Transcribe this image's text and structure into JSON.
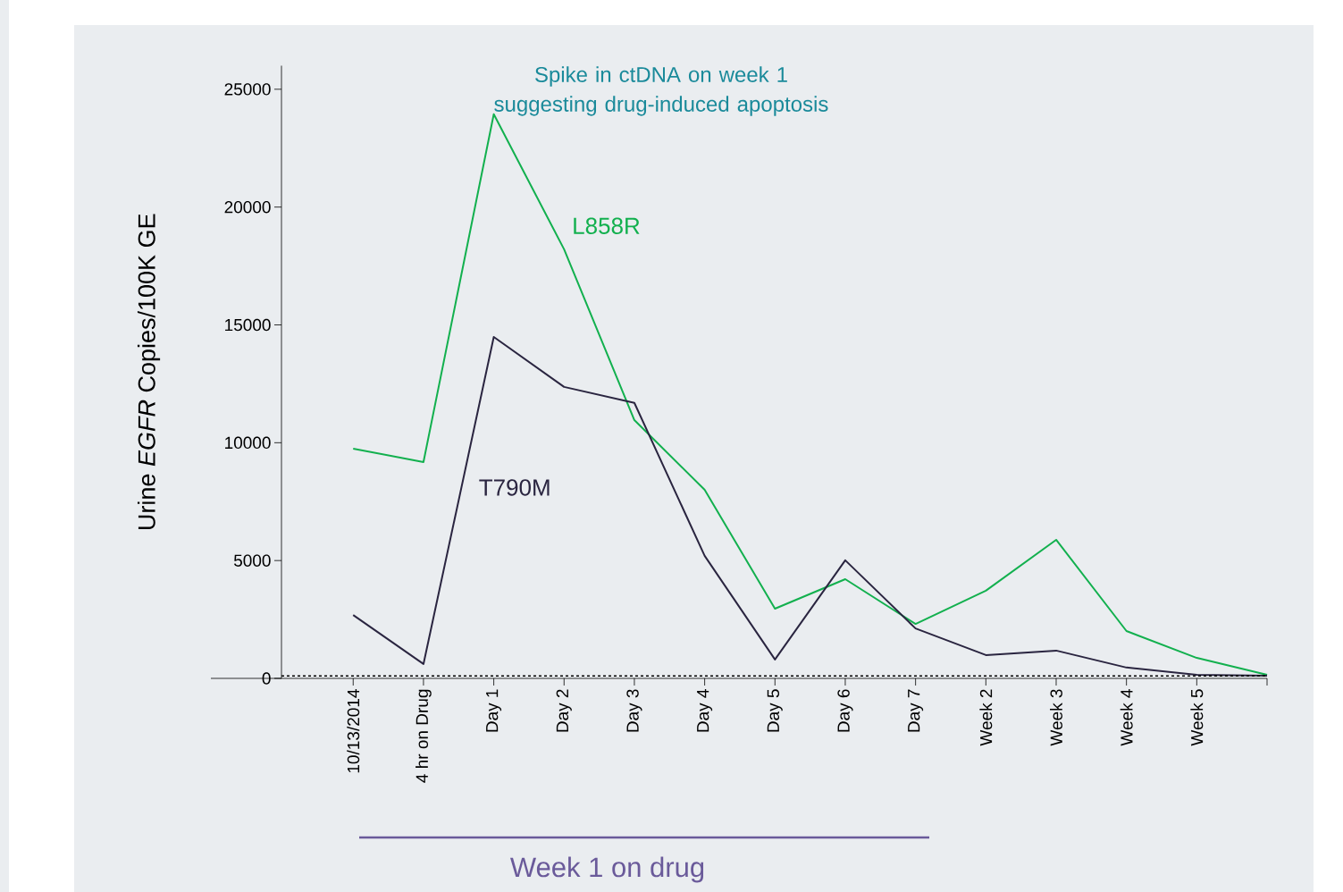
{
  "chart_data": {
    "type": "line",
    "title": "Spike in ctDNA on week 1 suggesting drug-induced apoptosis",
    "ylabel": "Urine *EGFR* Copies/100K GE",
    "categories": [
      "10/13/2014",
      "4 hr on Drug",
      "Day 1",
      "Day 2",
      "Day 3",
      "Day 4",
      "Day 5",
      "Day 6",
      "Day 7",
      "Week 2",
      "Week 3",
      "Week 4",
      "Week 5",
      null
    ],
    "series": [
      {
        "name": "L858R",
        "color": "#12b04e",
        "values": [
          9750,
          9180,
          23940,
          18210,
          10960,
          8000,
          2960,
          4210,
          2310,
          3720,
          5880,
          2010,
          870,
          150
        ]
      },
      {
        "name": "T790M",
        "color": "#2a2540",
        "values": [
          2690,
          610,
          14490,
          12370,
          11690,
          5200,
          800,
          5010,
          2120,
          990,
          1180,
          460,
          150,
          110
        ]
      }
    ],
    "ylim": [
      0,
      26000
    ],
    "yticks": [
      0,
      5000,
      10000,
      15000,
      20000,
      25000
    ],
    "ref_lines": [
      {
        "axis": "y",
        "value": 100,
        "color": "#000000",
        "line_style": "dashed"
      }
    ],
    "annotations": [
      "Week 1 on drug"
    ],
    "marker": "none",
    "line_style": "solid"
  }
}
